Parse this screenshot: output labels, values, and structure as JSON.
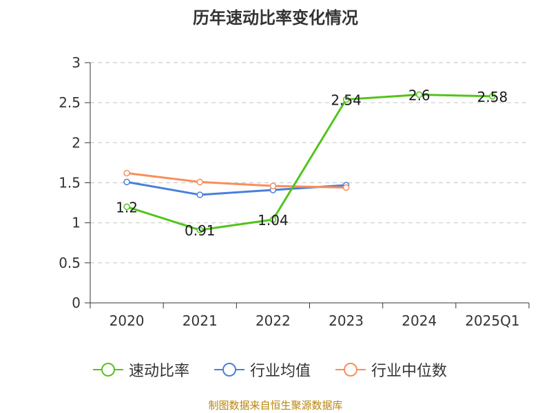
{
  "chart_data": {
    "type": "line",
    "title": "历年速动比率变化情况",
    "categories": [
      "2020",
      "2021",
      "2022",
      "2023",
      "2024",
      "2025Q1"
    ],
    "y_ticks": [
      "0",
      "0.5",
      "1",
      "1.5",
      "2",
      "2.5",
      "3"
    ],
    "ylim": [
      0,
      3
    ],
    "grid": true,
    "legend_position": "bottom",
    "series": [
      {
        "name": "速动比率",
        "color": "#52c41a",
        "values": [
          1.2,
          0.91,
          1.04,
          2.54,
          2.6,
          2.58
        ],
        "labels": [
          "1.2",
          "0.91",
          "1.04",
          "2.54",
          "2.6",
          "2.58"
        ]
      },
      {
        "name": "行业均值",
        "color": "#4a7fd9",
        "values": [
          1.51,
          1.35,
          1.41,
          1.47,
          null,
          null
        ]
      },
      {
        "name": "行业中位数",
        "color": "#f98e5a",
        "values": [
          1.62,
          1.51,
          1.46,
          1.44,
          null,
          null
        ]
      }
    ]
  },
  "source_text": "制图数据来自恒生聚源数据库"
}
